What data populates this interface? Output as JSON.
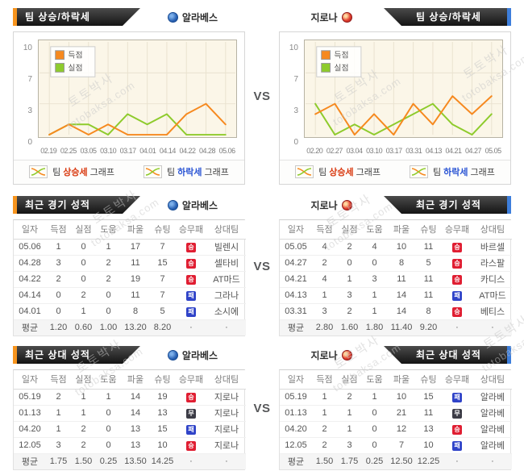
{
  "vs_label": "VS",
  "watermark": {
    "line1": "토토박사",
    "line2": "totobaksa.com"
  },
  "teams": {
    "left": {
      "name": "알라베스",
      "icon": "alaves-crest"
    },
    "right": {
      "name": "지로나",
      "icon": "girona-crest"
    }
  },
  "colors": {
    "accent_left": "#f7941d",
    "accent_right": "#3d7edb",
    "win": "#e01e32",
    "draw": "#3c3c46",
    "loss": "#2f43c8",
    "line_goals": "#f6891f",
    "line_conceded": "#8ecb2c"
  },
  "section_trend": {
    "header": "팀 상승/하락세",
    "legend_up": {
      "prefix": "팀",
      "highlight": "상승세",
      "suffix": "그래프"
    },
    "legend_down": {
      "prefix": "팀",
      "highlight": "하락세",
      "suffix": "그래프"
    }
  },
  "chart_data": [
    {
      "type": "line",
      "team": "알라베스",
      "x": [
        "02.19",
        "02.25",
        "03.05",
        "03.10",
        "03.17",
        "04.01",
        "04.14",
        "04.22",
        "04.28",
        "05.06"
      ],
      "series": [
        {
          "name": "득점",
          "color": "#f6891f",
          "values": [
            0,
            1,
            0,
            1,
            0,
            0,
            0,
            2,
            3,
            1
          ]
        },
        {
          "name": "실점",
          "color": "#8ecb2c",
          "values": [
            0,
            1,
            1,
            0,
            2,
            1,
            2,
            0,
            0,
            0
          ]
        }
      ],
      "yticks": [
        0,
        3,
        7,
        10
      ],
      "ylim": [
        0,
        10
      ],
      "grid": true,
      "legend_position": "top-left"
    },
    {
      "type": "line",
      "team": "지로나",
      "x": [
        "02.20",
        "02.27",
        "03.04",
        "03.10",
        "03.17",
        "03.31",
        "04.13",
        "04.21",
        "04.27",
        "05.05"
      ],
      "series": [
        {
          "name": "득점",
          "color": "#f6891f",
          "values": [
            2,
            3,
            0,
            2,
            0,
            3,
            1,
            4,
            2,
            4
          ]
        },
        {
          "name": "실점",
          "color": "#8ecb2c",
          "values": [
            3,
            0,
            1,
            0,
            1,
            2,
            3,
            1,
            0,
            2
          ]
        }
      ],
      "yticks": [
        0,
        3,
        7,
        10
      ],
      "ylim": [
        0,
        10
      ],
      "grid": true,
      "legend_position": "top-left"
    }
  ],
  "section_recent": {
    "header": "최근 경기 성적",
    "columns": [
      "일자",
      "득점",
      "실점",
      "도움",
      "파울",
      "슈팅",
      "승무패",
      "상대팀"
    ],
    "left_rows": [
      [
        "05.06",
        "1",
        "0",
        "1",
        "17",
        "7",
        "승",
        "빌렌시"
      ],
      [
        "04.28",
        "3",
        "0",
        "2",
        "11",
        "15",
        "승",
        "셀타비"
      ],
      [
        "04.22",
        "2",
        "0",
        "2",
        "19",
        "7",
        "승",
        "AT마드"
      ],
      [
        "04.14",
        "0",
        "2",
        "0",
        "11",
        "7",
        "패",
        "그라나"
      ],
      [
        "04.01",
        "0",
        "1",
        "0",
        "8",
        "5",
        "패",
        "소시에"
      ],
      [
        "평균",
        "1.20",
        "0.60",
        "1.00",
        "13.20",
        "8.20",
        "·",
        "·"
      ]
    ],
    "right_rows": [
      [
        "05.05",
        "4",
        "2",
        "4",
        "10",
        "11",
        "승",
        "바르셀"
      ],
      [
        "04.27",
        "2",
        "0",
        "0",
        "8",
        "5",
        "승",
        "라스팔"
      ],
      [
        "04.21",
        "4",
        "1",
        "3",
        "11",
        "11",
        "승",
        "카디스"
      ],
      [
        "04.13",
        "1",
        "3",
        "1",
        "14",
        "11",
        "패",
        "AT마드"
      ],
      [
        "03.31",
        "3",
        "2",
        "1",
        "14",
        "8",
        "승",
        "베티스"
      ],
      [
        "평균",
        "2.80",
        "1.60",
        "1.80",
        "11.40",
        "9.20",
        "·",
        "·"
      ]
    ]
  },
  "section_h2h": {
    "header": "최근 상대 성적",
    "columns": [
      "일자",
      "득점",
      "실점",
      "도움",
      "파울",
      "슈팅",
      "승무패",
      "상대팀"
    ],
    "left_rows": [
      [
        "05.19",
        "2",
        "1",
        "1",
        "14",
        "19",
        "승",
        "지로나"
      ],
      [
        "01.13",
        "1",
        "1",
        "0",
        "14",
        "13",
        "무",
        "지로나"
      ],
      [
        "04.20",
        "1",
        "2",
        "0",
        "13",
        "15",
        "패",
        "지로나"
      ],
      [
        "12.05",
        "3",
        "2",
        "0",
        "13",
        "10",
        "승",
        "지로나"
      ],
      [
        "평균",
        "1.75",
        "1.50",
        "0.25",
        "13.50",
        "14.25",
        "·",
        "·"
      ]
    ],
    "right_rows": [
      [
        "05.19",
        "1",
        "2",
        "1",
        "10",
        "15",
        "패",
        "알라베"
      ],
      [
        "01.13",
        "1",
        "1",
        "0",
        "21",
        "11",
        "무",
        "알라베"
      ],
      [
        "04.20",
        "2",
        "1",
        "0",
        "12",
        "13",
        "승",
        "알라베"
      ],
      [
        "12.05",
        "2",
        "3",
        "0",
        "7",
        "10",
        "패",
        "알라베"
      ],
      [
        "평균",
        "1.50",
        "1.75",
        "0.25",
        "12.50",
        "12.25",
        "·",
        "·"
      ]
    ]
  }
}
